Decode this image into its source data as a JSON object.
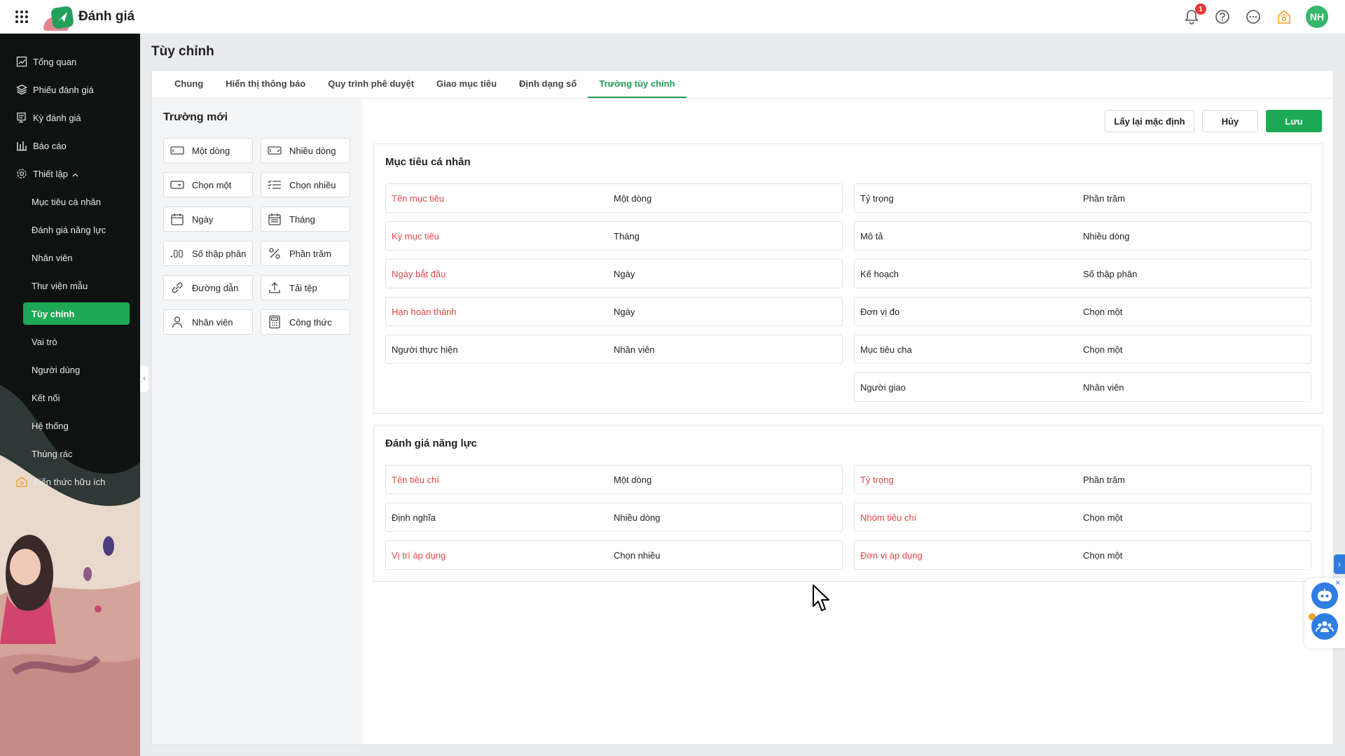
{
  "app": {
    "title": "Đánh giá"
  },
  "topbar": {
    "notification_count": "1",
    "avatar_initials": "NH"
  },
  "sidebar": {
    "items": [
      {
        "label": "Tổng quan",
        "icon": "chart-icon"
      },
      {
        "label": "Phiếu đánh giá",
        "icon": "layers-icon"
      },
      {
        "label": "Kỳ đánh giá",
        "icon": "calendar-doc-icon"
      },
      {
        "label": "Báo cáo",
        "icon": "bar-chart-icon"
      },
      {
        "label": "Thiết lập",
        "icon": "gear-icon"
      }
    ],
    "sub_items": [
      "Mục tiêu cá nhân",
      "Đánh giá năng lực",
      "Nhân viên",
      "Thư viện mẫu",
      "Tùy chỉnh",
      "Vai trò",
      "Người dùng",
      "Kết nối",
      "Hệ thống",
      "Thùng rác"
    ],
    "active_sub": "Tùy chỉnh",
    "extra": {
      "label": "Kiến thức hữu ích",
      "icon": "bulb-icon"
    }
  },
  "page": {
    "title": "Tùy chỉnh"
  },
  "tabs": [
    "Chung",
    "Hiển thị thông báo",
    "Quy trình phê duyệt",
    "Giao mục tiêu",
    "Định dạng số",
    "Trường tùy chỉnh"
  ],
  "active_tab": "Trường tùy chỉnh",
  "new_fields": {
    "title": "Trường mới",
    "items": [
      {
        "label": "Một dòng",
        "icon": "single-line-icon"
      },
      {
        "label": "Nhiều dòng",
        "icon": "multi-line-icon"
      },
      {
        "label": "Chọn một",
        "icon": "dropdown-icon"
      },
      {
        "label": "Chọn nhiều",
        "icon": "checklist-icon"
      },
      {
        "label": "Ngày",
        "icon": "calendar-icon"
      },
      {
        "label": "Tháng",
        "icon": "month-calendar-icon"
      },
      {
        "label": "Số thập phân",
        "icon": "decimal-icon"
      },
      {
        "label": "Phần trăm",
        "icon": "percent-icon"
      },
      {
        "label": "Đường dẫn",
        "icon": "link-icon"
      },
      {
        "label": "Tải tệp",
        "icon": "upload-icon"
      },
      {
        "label": "Nhân viên",
        "icon": "person-icon"
      },
      {
        "label": "Công thức",
        "icon": "calculator-icon"
      }
    ]
  },
  "actions": {
    "reset": "Lấy lại mặc định",
    "cancel": "Hủy",
    "save": "Lưu"
  },
  "colors": {
    "accent": "#1ea957",
    "required": "#e04747",
    "sidebar_bg": "#0e1312"
  },
  "sections": [
    {
      "title": "Mục tiêu cá nhân",
      "left": [
        {
          "name": "Tên mục tiêu",
          "type": "Một dòng",
          "required": true
        },
        {
          "name": "Kỳ mục tiêu",
          "type": "Tháng",
          "required": true
        },
        {
          "name": "Ngày bắt đầu",
          "type": "Ngày",
          "required": true
        },
        {
          "name": "Hạn hoàn thành",
          "type": "Ngày",
          "required": true
        },
        {
          "name": "Người thực hiện",
          "type": "Nhân viên",
          "required": false
        }
      ],
      "right": [
        {
          "name": "Tỷ trọng",
          "type": "Phần trăm",
          "required": false
        },
        {
          "name": "Mô tả",
          "type": "Nhiều dòng",
          "required": false
        },
        {
          "name": "Kế hoạch",
          "type": "Số thập phân",
          "required": false
        },
        {
          "name": "Đơn vị đo",
          "type": "Chọn một",
          "required": false
        },
        {
          "name": "Mục tiêu cha",
          "type": "Chọn một",
          "required": false
        },
        {
          "name": "Người giao",
          "type": "Nhân viên",
          "required": false
        }
      ]
    },
    {
      "title": "Đánh giá năng lực",
      "left": [
        {
          "name": "Tên tiêu chí",
          "type": "Một dòng",
          "required": true
        },
        {
          "name": "Định nghĩa",
          "type": "Nhiều dòng",
          "required": false
        },
        {
          "name": "Vị trí áp dụng",
          "type": "Chọn nhiều",
          "required": true
        }
      ],
      "right": [
        {
          "name": "Tỷ trọng",
          "type": "Phần trăm",
          "required": true
        },
        {
          "name": "Nhóm tiêu chí",
          "type": "Chọn một",
          "required": true
        },
        {
          "name": "Đơn vị áp dụng",
          "type": "Chọn một",
          "required": true
        }
      ]
    }
  ]
}
